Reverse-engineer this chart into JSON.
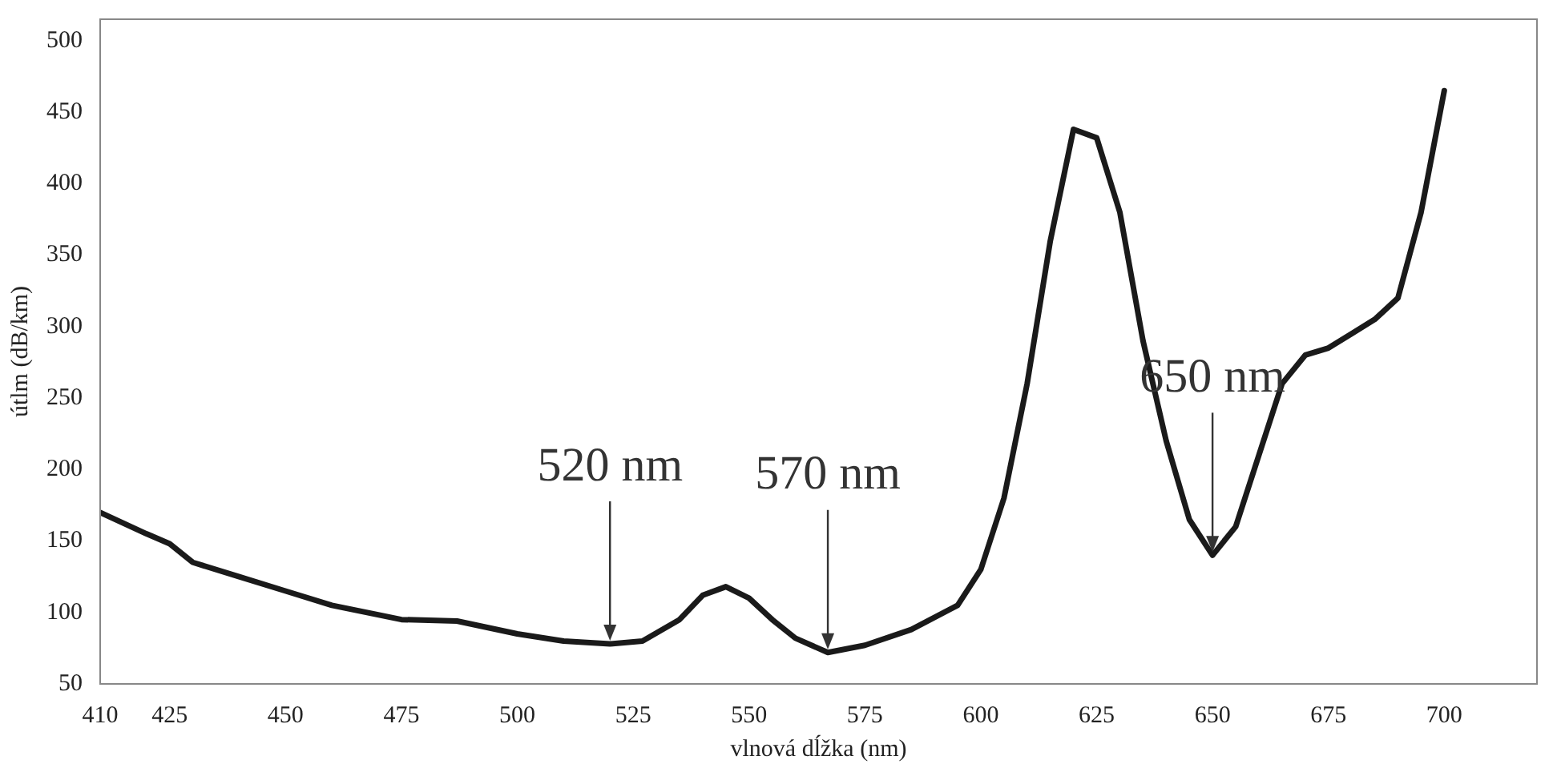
{
  "chart_data": {
    "type": "line",
    "xlabel": "vlnová dĺžka (nm)",
    "ylabel": "útlm (dB/km)",
    "x": [
      410,
      420,
      425,
      430,
      440,
      450,
      460,
      475,
      487,
      500,
      510,
      520,
      527,
      535,
      540,
      545,
      550,
      555,
      560,
      567,
      575,
      585,
      595,
      600,
      605,
      610,
      615,
      620,
      625,
      630,
      635,
      640,
      645,
      650,
      655,
      660,
      665,
      670,
      675,
      680,
      685,
      690,
      695,
      700
    ],
    "series": [
      {
        "color": "#1a1a1a",
        "values": [
          170,
          155,
          148,
          135,
          125,
          115,
          105,
          95,
          94,
          85,
          80,
          78,
          80,
          95,
          112,
          118,
          110,
          95,
          82,
          72,
          77,
          88,
          105,
          130,
          180,
          260,
          360,
          438,
          432,
          380,
          290,
          220,
          165,
          140,
          160,
          210,
          260,
          280,
          285,
          295,
          305,
          320,
          380,
          465
        ]
      }
    ],
    "xlim": [
      410,
      720
    ],
    "xticks": [
      410,
      425,
      450,
      475,
      500,
      525,
      550,
      575,
      600,
      625,
      650,
      675,
      700
    ],
    "ylim": [
      50,
      515
    ],
    "yticks": [
      50,
      100,
      150,
      200,
      250,
      300,
      350,
      400,
      450,
      500
    ],
    "grid": false,
    "legend": false,
    "marker": "none",
    "line_style": "solid",
    "annotations": [
      {
        "text": "520 nm",
        "x": 520,
        "y": 78
      },
      {
        "text": "570 nm",
        "x": 567,
        "y": 72
      },
      {
        "text": "650 nm",
        "x": 650,
        "y": 140
      }
    ]
  }
}
